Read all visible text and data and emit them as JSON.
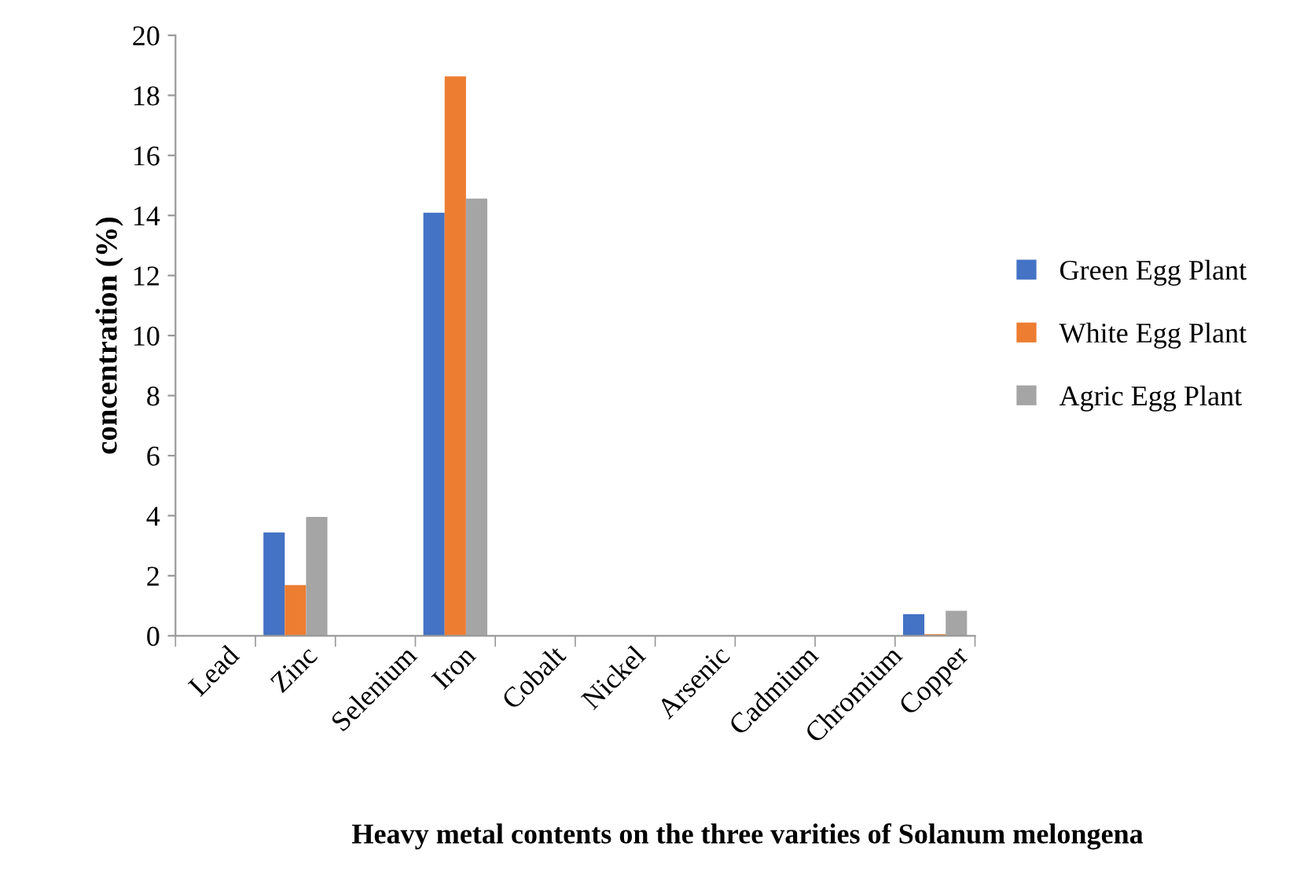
{
  "chart_data": {
    "type": "bar",
    "xlabel": "Heavy metal contents on the three varities of Solanum melongena",
    "ylabel": "concentration (%)",
    "categories": [
      "Lead",
      "Zinc",
      "Selenium",
      "Iron",
      "Cobalt",
      "Nickel",
      "Arsenic",
      "Cadmium",
      "Chromium",
      "Copper"
    ],
    "series": [
      {
        "name": "Green Egg Plant",
        "color": "#4472c4",
        "values": [
          0,
          3.44,
          0,
          14.09,
          0,
          0,
          0,
          0,
          0,
          0.72
        ]
      },
      {
        "name": "White Egg Plant",
        "color": "#ed7d31",
        "values": [
          0,
          1.69,
          0,
          18.63,
          0,
          0,
          0,
          0,
          0,
          0.05
        ]
      },
      {
        "name": "Agric Egg Plant",
        "color": "#a5a5a5",
        "values": [
          0,
          3.96,
          0,
          14.56,
          0,
          0,
          0,
          0,
          0,
          0.83
        ]
      }
    ],
    "ylim": [
      0,
      20
    ],
    "yticks": [
      0,
      2,
      4,
      6,
      8,
      10,
      12,
      14,
      16,
      18,
      20
    ],
    "grid": false,
    "legend": "right"
  }
}
